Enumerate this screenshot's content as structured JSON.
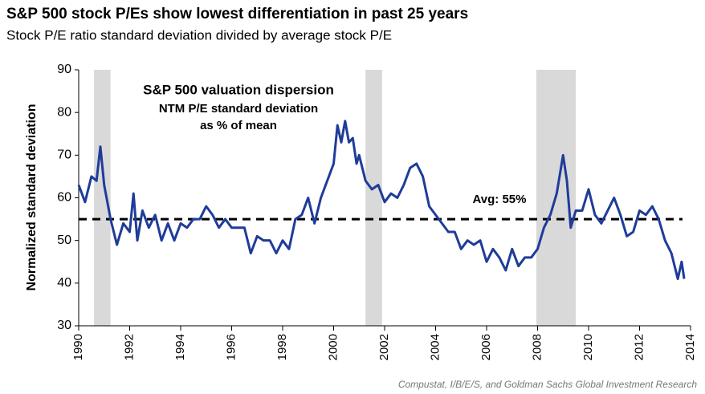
{
  "chart_data": {
    "type": "line",
    "title": "S&P 500 stock P/Es show lowest differentiation in past 25 years",
    "subtitle": "Stock P/E ratio standard deviation divided by average stock P/E",
    "ylabel": "Normalized standard deviation",
    "annotations": [
      "S&P 500 valuation dispersion",
      "NTM P/E standard deviation",
      "as % of mean"
    ],
    "average": 55,
    "average_label": "Avg: 55%",
    "source": "Compustat, I/B/E/S, and Goldman Sachs Global Investment Research",
    "recessions": [
      [
        1990.6,
        1991.25
      ],
      [
        2001.25,
        2001.9
      ],
      [
        2007.95,
        2009.5
      ]
    ],
    "xlim": [
      1990,
      2014
    ],
    "xticks": [
      1990,
      1992,
      1994,
      1996,
      1998,
      2000,
      2002,
      2004,
      2006,
      2008,
      2010,
      2012,
      2014
    ],
    "ylim": [
      30,
      90
    ],
    "yticks": [
      30,
      40,
      50,
      60,
      70,
      80,
      90
    ],
    "x": [
      1990.0,
      1990.25,
      1990.5,
      1990.7,
      1990.85,
      1991.0,
      1991.25,
      1991.5,
      1991.75,
      1992.0,
      1992.15,
      1992.3,
      1992.5,
      1992.75,
      1993.0,
      1993.25,
      1993.5,
      1993.75,
      1994.0,
      1994.25,
      1994.5,
      1994.75,
      1995.0,
      1995.25,
      1995.5,
      1995.75,
      1996.0,
      1996.25,
      1996.5,
      1996.75,
      1997.0,
      1997.25,
      1997.5,
      1997.75,
      1998.0,
      1998.25,
      1998.5,
      1998.75,
      1999.0,
      1999.25,
      1999.5,
      1999.75,
      2000.0,
      2000.15,
      2000.3,
      2000.45,
      2000.6,
      2000.75,
      2000.9,
      2001.0,
      2001.25,
      2001.5,
      2001.75,
      2002.0,
      2002.25,
      2002.5,
      2002.75,
      2003.0,
      2003.25,
      2003.5,
      2003.75,
      2004.0,
      2004.25,
      2004.5,
      2004.75,
      2005.0,
      2005.25,
      2005.5,
      2005.75,
      2006.0,
      2006.25,
      2006.5,
      2006.75,
      2007.0,
      2007.25,
      2007.5,
      2007.75,
      2008.0,
      2008.25,
      2008.5,
      2008.75,
      2009.0,
      2009.15,
      2009.3,
      2009.5,
      2009.75,
      2010.0,
      2010.25,
      2010.5,
      2010.75,
      2011.0,
      2011.25,
      2011.5,
      2011.75,
      2012.0,
      2012.25,
      2012.5,
      2012.75,
      2013.0,
      2013.25,
      2013.5,
      2013.65,
      2013.75
    ],
    "series": [
      {
        "name": "S&P 500 valuation dispersion",
        "color": "#1f3c99",
        "values": [
          63,
          59,
          65,
          64,
          72,
          63,
          55,
          49,
          54,
          52,
          61,
          50,
          57,
          53,
          56,
          50,
          54,
          50,
          54,
          53,
          55,
          55,
          58,
          56,
          53,
          55,
          53,
          53,
          53,
          47,
          51,
          50,
          50,
          47,
          50,
          48,
          55,
          56,
          60,
          54,
          60,
          64,
          68,
          77,
          73,
          78,
          73,
          74,
          68,
          70,
          64,
          62,
          63,
          59,
          61,
          60,
          63,
          67,
          68,
          65,
          58,
          56,
          54,
          52,
          52,
          48,
          50,
          49,
          50,
          45,
          48,
          46,
          43,
          48,
          44,
          46,
          46,
          48,
          53,
          56,
          61,
          70,
          64,
          53,
          57,
          57,
          62,
          56,
          54,
          57,
          60,
          56,
          51,
          52,
          57,
          56,
          58,
          55,
          50,
          47,
          41,
          45,
          41
        ]
      }
    ]
  }
}
